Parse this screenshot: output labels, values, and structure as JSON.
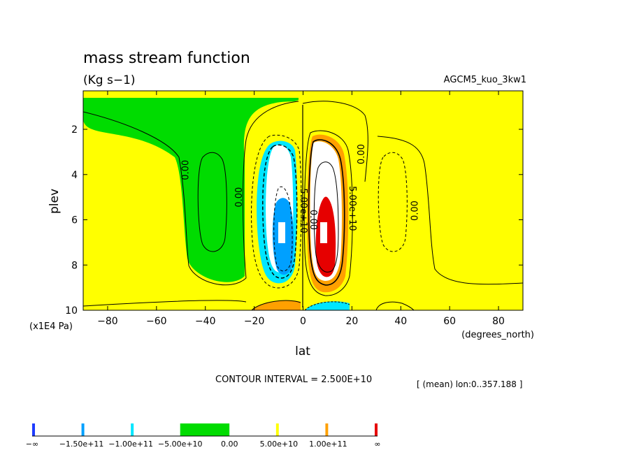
{
  "chart_data": {
    "type": "heatmap",
    "title": "mass stream function",
    "units_label": "(Kg s−1)",
    "model_label": "AGCM5_kuo_3kw1",
    "xlabel": "lat",
    "x_units": "(degrees_north)",
    "ylabel": "plev",
    "y_units": "(x1E4 Pa)",
    "xlim": [
      -90,
      90
    ],
    "ylim": [
      10,
      0.3
    ],
    "x_ticks": [
      -80,
      -60,
      -40,
      -20,
      0,
      20,
      40,
      60,
      80
    ],
    "x_tick_labels": [
      "−80",
      "−60",
      "−40",
      "−20",
      "0",
      "20",
      "40",
      "60",
      "80"
    ],
    "y_ticks": [
      2,
      4,
      6,
      8,
      10
    ],
    "y_tick_labels": [
      "2",
      "4",
      "6",
      "8",
      "10"
    ],
    "grid": false,
    "contour_interval_text": "CONTOUR INTERVAL = 2.500E+10",
    "mean_info_text": "[ (mean) lon:0..357.188 ]",
    "contour_labels": [
      {
        "text": "0.00",
        "lat": -47,
        "plev": 3.8,
        "rotate": -90
      },
      {
        "text": "0.00",
        "lat": -25,
        "plev": 5.0,
        "rotate": -90
      },
      {
        "text": "5.00e+10",
        "lat": -1,
        "plev": 5.6,
        "rotate": 90
      },
      {
        "text": "0.00",
        "lat": 3,
        "plev": 6.0,
        "rotate": 90
      },
      {
        "text": "5.00e+10",
        "lat": 19,
        "plev": 5.5,
        "rotate": 90
      },
      {
        "text": "0.00",
        "lat": 25,
        "plev": 3.1,
        "rotate": -90
      },
      {
        "text": "0.00",
        "lat": 47,
        "plev": 5.6,
        "rotate": -90
      }
    ],
    "colorbar": {
      "labels": [
        "−∞",
        "−1.50e+11",
        "−1.00e+11",
        "−5.00e+10",
        "0.00",
        "5.00e+10",
        "1.00e+11",
        "∞"
      ],
      "colors": [
        "#1e3cff",
        "#00a0ff",
        "#00e6ff",
        "#00dc00",
        "#ffff00",
        "#ffa000",
        "#e60000"
      ]
    },
    "fill_colors": {
      "zero_neg": "#00dc00",
      "zero_pos": "#ffff00",
      "pos_50_100": "#ffa000",
      "pos_100_150": "#ffffff",
      "pos_gt_150": "#e60000",
      "neg_50_100": "#00e6ff",
      "neg_100_150": "#ffffff",
      "neg_lt_150": "#00a0ff"
    }
  }
}
